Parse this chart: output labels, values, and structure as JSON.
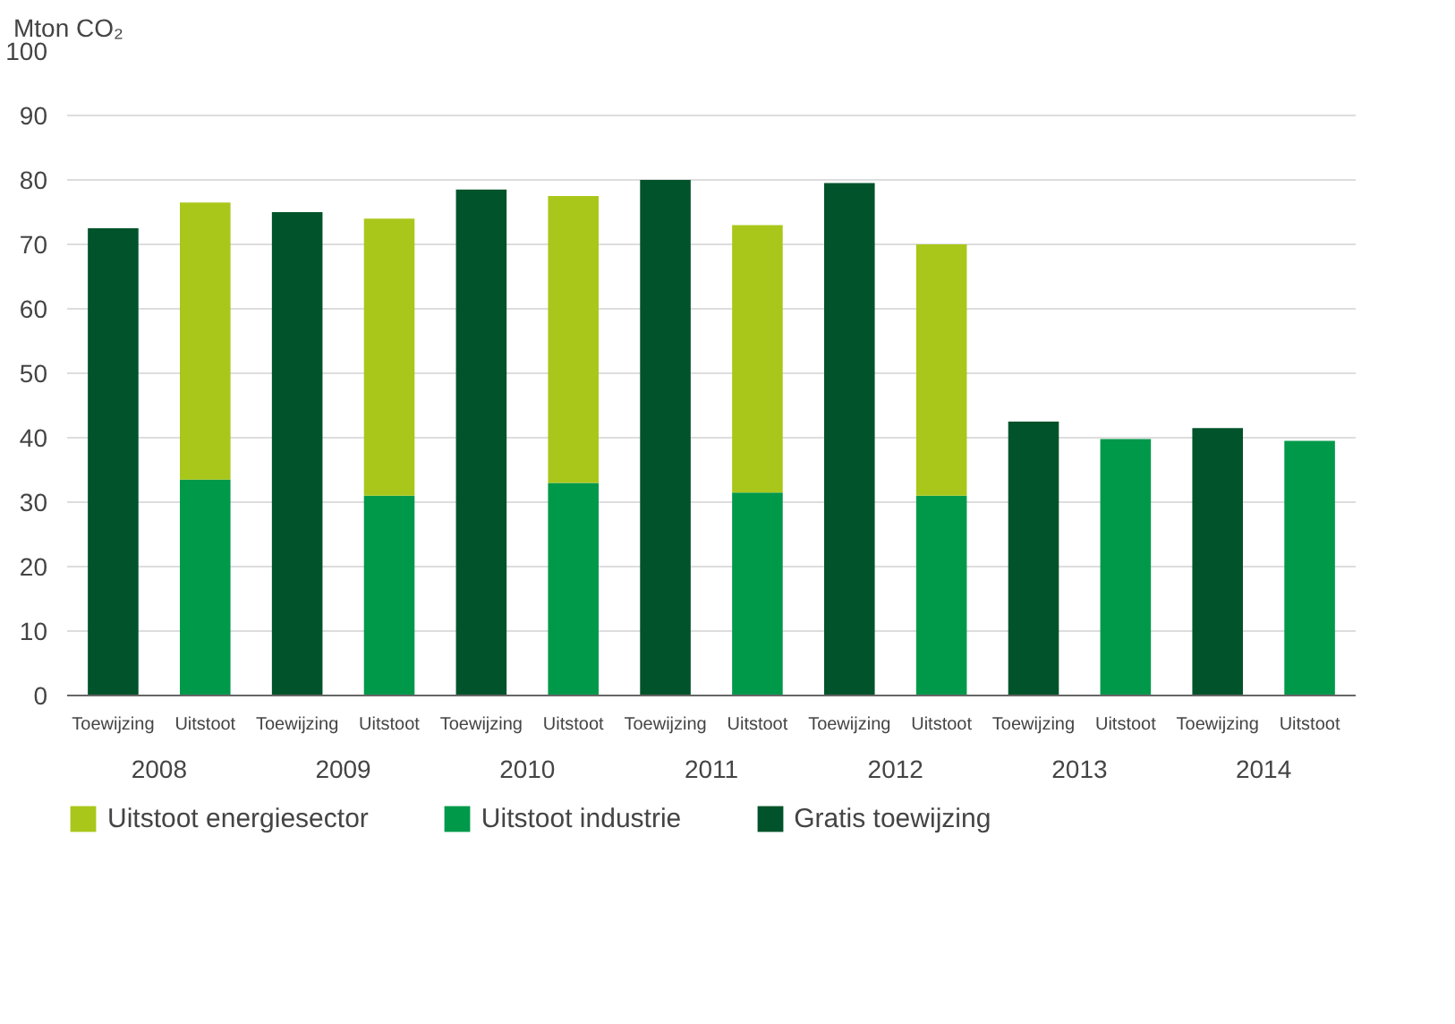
{
  "chart_data": {
    "type": "bar",
    "stacked": true,
    "ylabel": "Mton CO₂",
    "categories": [
      "Toewijzing",
      "Uitstoot",
      "Toewijzing",
      "Uitstoot",
      "Toewijzing",
      "Uitstoot",
      "Toewijzing",
      "Uitstoot",
      "Toewijzing",
      "Uitstoot",
      "Toewijzing",
      "Uitstoot",
      "Toewijzing",
      "Uitstoot"
    ],
    "annotations": [
      "2008",
      "2009",
      "2010",
      "2011",
      "2012",
      "2013",
      "2014"
    ],
    "series": [
      {
        "name": "Gratis toewijzing",
        "color": "#00532a",
        "values": [
          72.5,
          null,
          75,
          null,
          78.5,
          null,
          80,
          null,
          79.5,
          null,
          42.5,
          null,
          41.5,
          null
        ]
      },
      {
        "name": "Uitstoot industrie",
        "color": "#00994a",
        "values": [
          null,
          33.5,
          null,
          31,
          null,
          33,
          null,
          31.5,
          null,
          31,
          null,
          39.8,
          null,
          39.5
        ]
      },
      {
        "name": "Uitstoot energiesector",
        "color": "#a9c71a",
        "values": [
          null,
          43,
          null,
          43,
          null,
          44.5,
          null,
          41.5,
          null,
          39,
          null,
          null,
          null,
          null
        ]
      }
    ],
    "ylim": [
      0,
      100
    ],
    "yticks": [
      0,
      10,
      20,
      30,
      40,
      50,
      60,
      70,
      80,
      90,
      100
    ],
    "grid": "y",
    "legend": "bottom"
  }
}
